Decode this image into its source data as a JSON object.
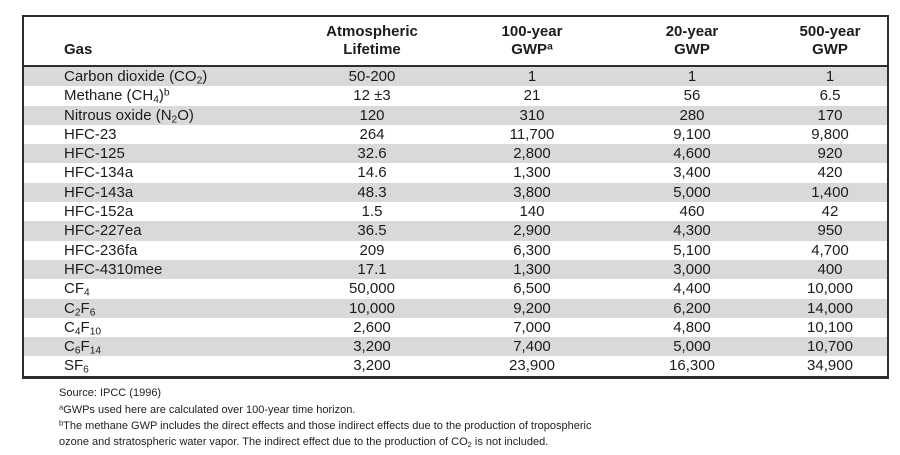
{
  "table": {
    "columns": [
      {
        "id": "gas",
        "lines": [
          "Gas"
        ]
      },
      {
        "id": "atmospheric-lifetime",
        "lines": [
          "Atmospheric",
          "Lifetime"
        ]
      },
      {
        "id": "gwp-100-year",
        "lines": [
          "100-year",
          "GWP^a^"
        ]
      },
      {
        "id": "gwp-20-year",
        "lines": [
          "20-year",
          "GWP"
        ]
      },
      {
        "id": "gwp-500-year",
        "lines": [
          "500-year",
          "GWP"
        ]
      }
    ],
    "rows": [
      [
        "Carbon dioxide (CO~2~)",
        "50-200",
        "1",
        "1",
        "1"
      ],
      [
        "Methane (CH~4~)^b^",
        "12 ±3",
        "21",
        "56",
        "6.5"
      ],
      [
        "Nitrous oxide (N~2~O)",
        "120",
        "310",
        "280",
        "170"
      ],
      [
        "HFC-23",
        "264",
        "11,700",
        "9,100",
        "9,800"
      ],
      [
        "HFC-125",
        "32.6",
        "2,800",
        "4,600",
        "920"
      ],
      [
        "HFC-134a",
        "14.6",
        "1,300",
        "3,400",
        "420"
      ],
      [
        "HFC-143a",
        "48.3",
        "3,800",
        "5,000",
        "1,400"
      ],
      [
        "HFC-152a",
        "1.5",
        "140",
        "460",
        "42"
      ],
      [
        "HFC-227ea",
        "36.5",
        "2,900",
        "4,300",
        "950"
      ],
      [
        "HFC-236fa",
        "209",
        "6,300",
        "5,100",
        "4,700"
      ],
      [
        "HFC-4310mee",
        "17.1",
        "1,300",
        "3,000",
        "400"
      ],
      [
        "CF~4~",
        "50,000",
        "6,500",
        "4,400",
        "10,000"
      ],
      [
        "C~2~F~6~",
        "10,000",
        "9,200",
        "6,200",
        "14,000"
      ],
      [
        "C~4~F~10~",
        "2,600",
        "7,000",
        "4,800",
        "10,100"
      ],
      [
        "C~6~F~14~",
        "3,200",
        "7,400",
        "5,000",
        "10,700"
      ],
      [
        "SF~6~",
        "3,200",
        "23,900",
        "16,300",
        "34,900"
      ]
    ]
  },
  "footnotes": {
    "source": "Source: IPCC (1996)",
    "a": "^a^GWPs used here are calculated over 100-year time horizon.",
    "b": "^b^The methane GWP includes the direct effects and those indirect effects due to the production of tropospheric ozone and stratospheric water vapor. The indirect effect due to the production of CO~2~ is not included."
  },
  "colors": {
    "stripe": "#d9d9d9",
    "border": "#2e2e2e",
    "background": "#ffffff"
  }
}
